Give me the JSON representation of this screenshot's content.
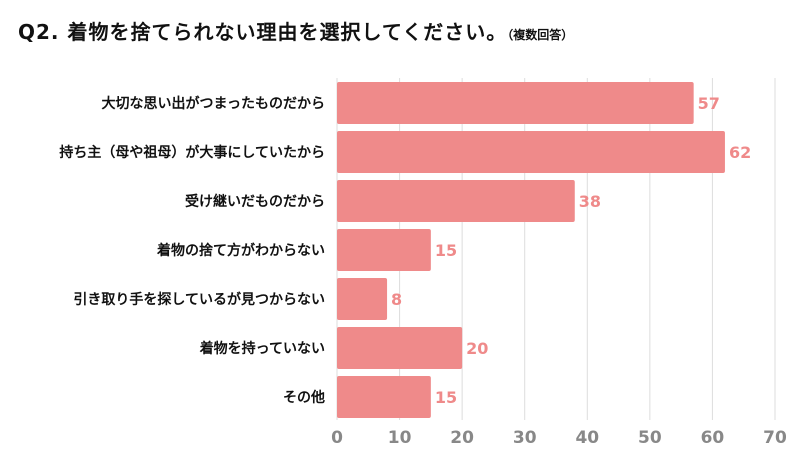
{
  "title": "Q2. 着物を捨てられない理由を選択してください。",
  "subtitle": "（複数回答）",
  "colors": {
    "bar": "#ef8a8a",
    "value_label": "#ef8a8a",
    "grid": "#dddddd",
    "tick": "#888888",
    "category": "#111111"
  },
  "chart_data": {
    "type": "bar",
    "orientation": "horizontal",
    "categories": [
      "大切な思い出がつまったものだから",
      "持ち主（母や祖母）が大事にしていたから",
      "受け継いだものだから",
      "着物の捨て方がわからない",
      "引き取り手を探しているが見つからない",
      "着物を持っていない",
      "その他"
    ],
    "values": [
      57,
      62,
      38,
      15,
      8,
      20,
      15
    ],
    "xlim": [
      0,
      70
    ],
    "xticks": [
      0,
      10,
      20,
      30,
      40,
      50,
      60,
      70
    ],
    "grid": true,
    "legend": false,
    "data_labels": true,
    "title": "Q2. 着物を捨てられない理由を選択してください。",
    "xlabel": "",
    "ylabel": ""
  }
}
